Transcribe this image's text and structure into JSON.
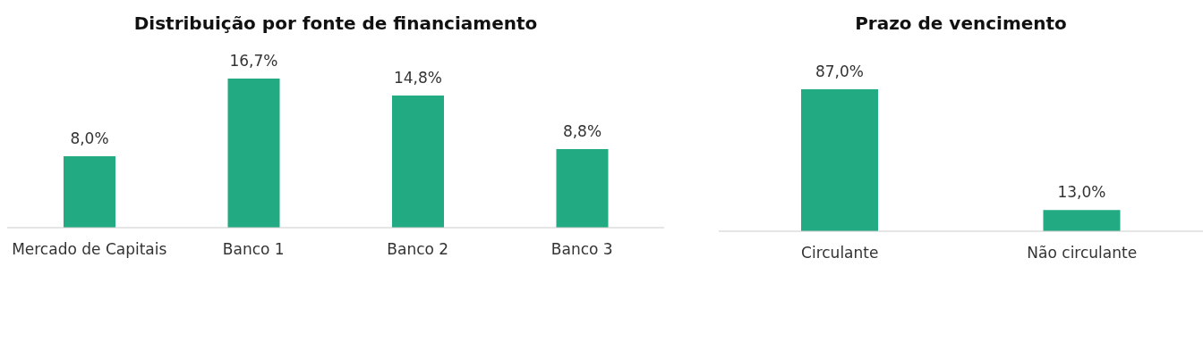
{
  "chart_data": [
    {
      "type": "bar",
      "title": "Distribuição por fonte de financiamento",
      "categories": [
        "Mercado de Capitais",
        "Banco 1",
        "Banco 2",
        "Banco 3"
      ],
      "values": [
        8.0,
        16.7,
        14.8,
        8.8
      ],
      "value_labels": [
        "8,0%",
        "16,7%",
        "14,8%",
        "8,8%"
      ],
      "color": "#22aa82"
    },
    {
      "type": "bar",
      "title": "Prazo de vencimento",
      "categories": [
        "Circulante",
        "Não circulante"
      ],
      "values": [
        87.0,
        13.0
      ],
      "value_labels": [
        "87,0%",
        "13,0%"
      ],
      "color": "#22aa82"
    }
  ]
}
